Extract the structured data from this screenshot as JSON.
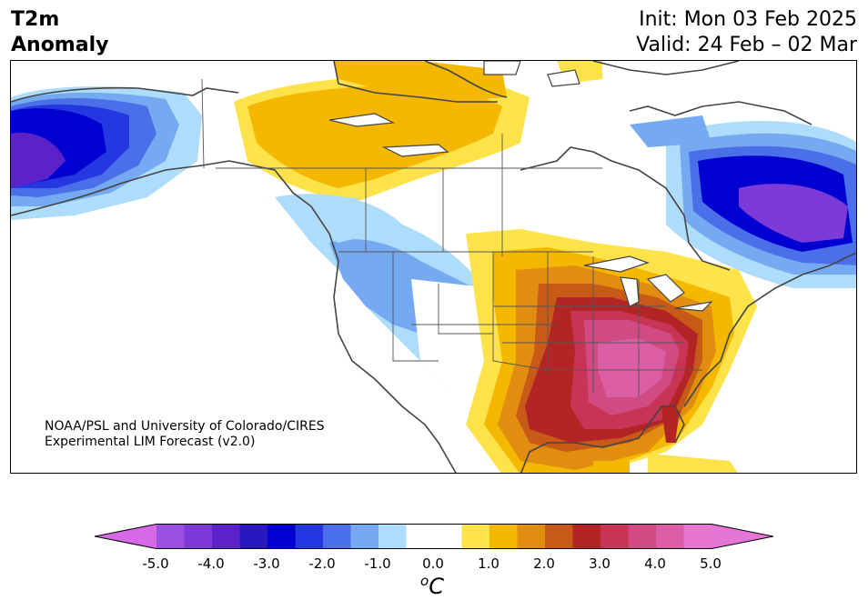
{
  "header": {
    "title_line1": "T2m",
    "title_line2": "Anomaly",
    "init": "Init: Mon 03 Feb 2025",
    "valid": "Valid: 24 Feb – 02 Mar"
  },
  "credit": {
    "line1": "NOAA/PSL and University of Colorado/CIRES",
    "line2": "Experimental LIM Forecast (v2.0)"
  },
  "colorbar": {
    "ticks": [
      "-5.0",
      "-4.0",
      "-3.0",
      "-2.0",
      "-1.0",
      "0.0",
      "1.0",
      "2.0",
      "3.0",
      "4.0",
      "5.0"
    ],
    "units_base": "C",
    "units_sup": "o",
    "colors": [
      "#9b4fe0",
      "#7c3ad6",
      "#5a22c8",
      "#2a17c0",
      "#0000d0",
      "#2437e0",
      "#4b6fe8",
      "#75aaf2",
      "#aedcfb",
      "#ffffff",
      "#ffffff",
      "#fee24a",
      "#f4b800",
      "#e08d10",
      "#c85a18",
      "#b32525",
      "#c73456",
      "#d04a84",
      "#db5ea5",
      "#e676cf"
    ],
    "low_color": "#d669e6",
    "high_color": "#e576d6"
  },
  "map": {
    "land_color": "#ffffff",
    "coast_color": "#444444"
  }
}
